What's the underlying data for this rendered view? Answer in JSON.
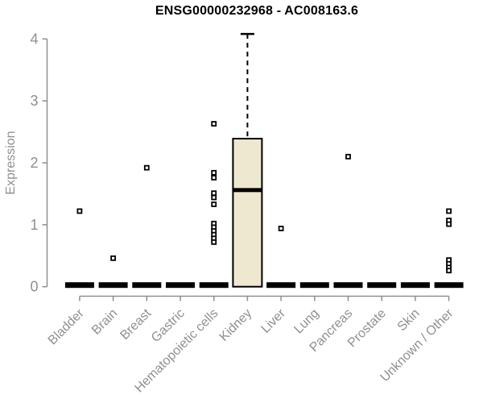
{
  "figure": {
    "title": "ENSG00000232968 - AC008163.6",
    "ylabel": "Expression"
  },
  "chart_data": {
    "type": "boxplot",
    "title": "ENSG00000232968 - AC008163.6",
    "xlabel": "",
    "ylabel": "Expression",
    "ylim": [
      0,
      4.15
    ],
    "yticks": [
      0,
      1,
      2,
      3,
      4
    ],
    "grid": false,
    "legend": false,
    "categories": [
      "Bladder",
      "Brain",
      "Breast",
      "Gastric",
      "Hematopoietic cells",
      "Kidney",
      "Liver",
      "Lung",
      "Pancreas",
      "Prostate",
      "Skin",
      "Unknown / Other"
    ],
    "boxes": [
      {
        "category": "Bladder",
        "whisker_low": 0,
        "q1": 0,
        "median": 0,
        "q3": 0,
        "whisker_high": 0,
        "outliers": [
          1.22
        ]
      },
      {
        "category": "Brain",
        "whisker_low": 0,
        "q1": 0,
        "median": 0,
        "q3": 0,
        "whisker_high": 0,
        "outliers": [
          0.46
        ]
      },
      {
        "category": "Breast",
        "whisker_low": 0,
        "q1": 0,
        "median": 0,
        "q3": 0,
        "whisker_high": 0,
        "outliers": [
          1.92
        ]
      },
      {
        "category": "Gastric",
        "whisker_low": 0,
        "q1": 0,
        "median": 0,
        "q3": 0,
        "whisker_high": 0,
        "outliers": []
      },
      {
        "category": "Hematopoietic cells",
        "whisker_low": 0,
        "q1": 0,
        "median": 0,
        "q3": 0,
        "whisker_high": 0,
        "outliers": [
          2.63,
          1.84,
          1.76,
          1.51,
          1.44,
          1.33,
          1.02,
          0.96,
          0.9,
          0.84,
          0.78,
          0.72
        ]
      },
      {
        "category": "Kidney",
        "whisker_low": 0,
        "q1": 0,
        "median": 1.56,
        "q3": 2.39,
        "whisker_high": 4.08,
        "outliers": []
      },
      {
        "category": "Liver",
        "whisker_low": 0,
        "q1": 0,
        "median": 0,
        "q3": 0,
        "whisker_high": 0,
        "outliers": [
          0.94
        ]
      },
      {
        "category": "Lung",
        "whisker_low": 0,
        "q1": 0,
        "median": 0,
        "q3": 0,
        "whisker_high": 0,
        "outliers": []
      },
      {
        "category": "Pancreas",
        "whisker_low": 0,
        "q1": 0,
        "median": 0,
        "q3": 0,
        "whisker_high": 0,
        "outliers": [
          2.1
        ]
      },
      {
        "category": "Prostate",
        "whisker_low": 0,
        "q1": 0,
        "median": 0,
        "q3": 0,
        "whisker_high": 0,
        "outliers": []
      },
      {
        "category": "Skin",
        "whisker_low": 0,
        "q1": 0,
        "median": 0,
        "q3": 0,
        "whisker_high": 0,
        "outliers": []
      },
      {
        "category": "Unknown / Other",
        "whisker_low": 0,
        "q1": 0,
        "median": 0,
        "q3": 0,
        "whisker_high": 0,
        "outliers": [
          1.22,
          1.07,
          1.01,
          0.43,
          0.37,
          0.31,
          0.26
        ]
      }
    ],
    "colors": {
      "box_fill": "#EDE8CF",
      "box_border": "#000000",
      "median": "#000000",
      "whisker": "#000000",
      "outlier": "#000000",
      "axis": "#8f8f8f",
      "tick_label": "#8f8f8f",
      "title": "#000000",
      "background": "#FFFFFF"
    }
  }
}
